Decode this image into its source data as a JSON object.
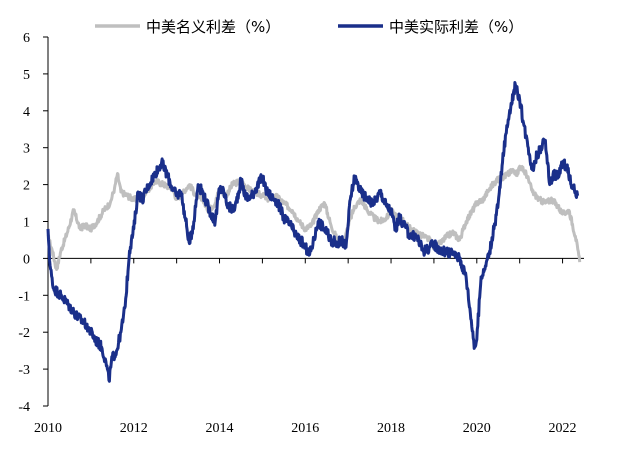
{
  "chart_data": {
    "type": "line",
    "title": "",
    "xlabel": "",
    "ylabel": "",
    "ylim": [
      -4,
      6
    ],
    "xlim": [
      2010,
      2022.5
    ],
    "y_ticks": [
      "6",
      "5",
      "4",
      "3",
      "2",
      "1",
      "0",
      "-1",
      "-2",
      "-3",
      "-4"
    ],
    "x_ticks": [
      "2010",
      "2012",
      "2014",
      "2016",
      "2018",
      "2020",
      "2022"
    ],
    "legend_position": "top",
    "grid": false,
    "series": [
      {
        "name": "中美名义利差（%）",
        "color": "#bfbfbf",
        "x": [
          2010.0,
          2010.1,
          2010.2,
          2010.3,
          2010.45,
          2010.6,
          2010.75,
          2010.85,
          2011.0,
          2011.15,
          2011.3,
          2011.45,
          2011.55,
          2011.62,
          2011.7,
          2011.85,
          2012.0,
          2012.15,
          2012.3,
          2012.5,
          2012.7,
          2012.9,
          2013.0,
          2013.15,
          2013.3,
          2013.45,
          2013.6,
          2013.75,
          2013.9,
          2014.0,
          2014.15,
          2014.3,
          2014.5,
          2014.65,
          2014.8,
          2015.0,
          2015.15,
          2015.3,
          2015.5,
          2015.7,
          2015.85,
          2016.0,
          2016.15,
          2016.3,
          2016.45,
          2016.6,
          2016.75,
          2016.9,
          2017.0,
          2017.15,
          2017.3,
          2017.45,
          2017.6,
          2017.75,
          2017.9,
          2018.0,
          2018.15,
          2018.3,
          2018.45,
          2018.6,
          2018.75,
          2018.9,
          2019.0,
          2019.15,
          2019.3,
          2019.45,
          2019.6,
          2019.75,
          2019.9,
          2020.0,
          2020.15,
          2020.3,
          2020.45,
          2020.6,
          2020.75,
          2020.85,
          2020.95,
          2021.0,
          2021.15,
          2021.3,
          2021.45,
          2021.6,
          2021.75,
          2021.9,
          2022.0,
          2022.15,
          2022.3,
          2022.4
        ],
        "values": [
          0.6,
          0.2,
          -0.3,
          0.2,
          0.7,
          1.3,
          0.8,
          0.9,
          0.8,
          1.0,
          1.3,
          1.5,
          1.9,
          2.3,
          1.8,
          1.7,
          1.6,
          1.6,
          1.8,
          2.1,
          2.0,
          1.9,
          1.6,
          1.8,
          2.0,
          1.7,
          1.6,
          1.3,
          1.5,
          1.9,
          1.7,
          2.0,
          2.1,
          1.9,
          1.8,
          1.7,
          1.6,
          1.7,
          1.5,
          1.3,
          1.0,
          0.8,
          0.9,
          1.3,
          1.5,
          0.9,
          0.5,
          0.4,
          0.9,
          1.4,
          1.6,
          1.3,
          1.1,
          1.0,
          1.1,
          1.3,
          1.1,
          1.0,
          0.8,
          0.7,
          0.6,
          0.5,
          0.3,
          0.4,
          0.6,
          0.7,
          0.5,
          1.0,
          1.3,
          1.5,
          1.6,
          1.9,
          2.1,
          2.2,
          2.3,
          2.4,
          2.3,
          2.5,
          2.3,
          1.8,
          1.6,
          1.5,
          1.6,
          1.4,
          1.2,
          1.3,
          0.6,
          -0.1
        ]
      },
      {
        "name": "中美实际利差（%）",
        "color": "#1a2f8a",
        "x": [
          2010.0,
          2010.05,
          2010.12,
          2010.3,
          2010.5,
          2010.7,
          2010.9,
          2011.1,
          2011.25,
          2011.35,
          2011.42,
          2011.5,
          2011.6,
          2011.7,
          2011.8,
          2011.9,
          2012.0,
          2012.1,
          2012.2,
          2012.35,
          2012.5,
          2012.65,
          2012.8,
          2012.9,
          2013.0,
          2013.1,
          2013.2,
          2013.3,
          2013.4,
          2013.5,
          2013.6,
          2013.7,
          2013.8,
          2013.9,
          2014.0,
          2014.1,
          2014.2,
          2014.35,
          2014.5,
          2014.6,
          2014.7,
          2014.85,
          2015.0,
          2015.1,
          2015.2,
          2015.3,
          2015.4,
          2015.5,
          2015.65,
          2015.8,
          2015.95,
          2016.1,
          2016.2,
          2016.3,
          2016.45,
          2016.6,
          2016.75,
          2016.85,
          2016.95,
          2017.05,
          2017.15,
          2017.3,
          2017.45,
          2017.6,
          2017.75,
          2017.9,
          2018.0,
          2018.1,
          2018.2,
          2018.3,
          2018.45,
          2018.6,
          2018.75,
          2018.9,
          2019.0,
          2019.15,
          2019.3,
          2019.45,
          2019.6,
          2019.75,
          2019.85,
          2019.95,
          2020.0,
          2020.1,
          2020.2,
          2020.3,
          2020.4,
          2020.5,
          2020.6,
          2020.7,
          2020.8,
          2020.9,
          2020.95,
          2021.0,
          2021.1,
          2021.2,
          2021.3,
          2021.4,
          2021.5,
          2021.6,
          2021.7,
          2021.8,
          2021.9,
          2022.0,
          2022.1,
          2022.2,
          2022.3,
          2022.35
        ],
        "values": [
          0.8,
          -0.2,
          -0.8,
          -1.0,
          -1.3,
          -1.6,
          -1.8,
          -2.2,
          -2.4,
          -2.8,
          -3.3,
          -2.7,
          -2.5,
          -2.0,
          -1.3,
          0.2,
          0.8,
          1.8,
          1.6,
          2.0,
          2.3,
          2.6,
          2.2,
          1.9,
          1.7,
          1.8,
          1.1,
          0.4,
          1.0,
          2.0,
          1.8,
          1.5,
          1.2,
          1.0,
          1.9,
          1.8,
          1.4,
          1.3,
          2.1,
          1.7,
          1.6,
          1.9,
          2.2,
          1.8,
          1.7,
          1.6,
          1.4,
          1.1,
          0.9,
          0.6,
          0.4,
          0.1,
          0.5,
          1.0,
          0.8,
          0.5,
          0.4,
          0.5,
          0.3,
          1.6,
          2.2,
          1.8,
          1.6,
          1.5,
          1.8,
          1.4,
          1.3,
          0.8,
          1.1,
          0.9,
          0.6,
          0.6,
          0.2,
          0.3,
          0.4,
          0.2,
          0.2,
          0.1,
          0.0,
          -0.5,
          -1.5,
          -2.4,
          -2.2,
          -0.5,
          -0.2,
          0.2,
          0.8,
          1.5,
          2.6,
          3.6,
          4.2,
          4.7,
          4.5,
          4.3,
          3.6,
          3.0,
          2.4,
          2.8,
          3.0,
          3.2,
          2.0,
          2.3,
          2.2,
          2.6,
          2.5,
          2.0,
          1.8,
          1.7
        ]
      }
    ]
  }
}
